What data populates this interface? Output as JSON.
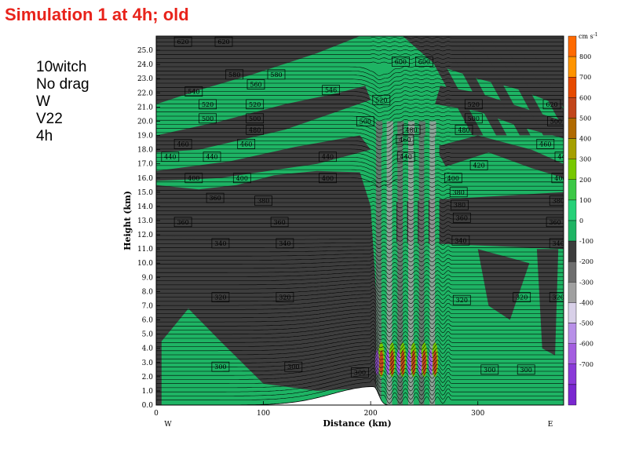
{
  "slide": {
    "title": "Simulation 1 at 4h; old",
    "notes": [
      "10witch",
      "No drag",
      "W",
      "V22",
      "4h"
    ]
  },
  "chart_data": {
    "type": "heatmap",
    "title": "",
    "xlabel": "Distance (km)",
    "ylabel": "Height (km)",
    "xlim": [
      0,
      380
    ],
    "ylim": [
      0,
      26
    ],
    "x_ticks": [
      0,
      100,
      200,
      300
    ],
    "y_ticks": [
      0.0,
      1.0,
      2.0,
      3.0,
      4.0,
      5.0,
      6.0,
      7.0,
      8.0,
      9.0,
      10.0,
      11.0,
      12.0,
      13.0,
      14.0,
      15.0,
      16.0,
      17.0,
      18.0,
      19.0,
      20.0,
      21.0,
      22.0,
      23.0,
      24.0,
      25.0
    ],
    "x_end_labels": {
      "left": "W",
      "right": "E"
    },
    "shaded_field": "W",
    "colorbar": {
      "unit": "cm s",
      "unit_exp": "-1",
      "levels": [
        {
          "label": "",
          "color": "#ff6a00"
        },
        {
          "label": "800",
          "color": "#ff9400"
        },
        {
          "label": "700",
          "color": "#e64a00"
        },
        {
          "label": "600",
          "color": "#c2461b"
        },
        {
          "label": "500",
          "color": "#b06a00"
        },
        {
          "label": "400",
          "color": "#a6a000"
        },
        {
          "label": "300",
          "color": "#78c800"
        },
        {
          "label": "200",
          "color": "#3cc846"
        },
        {
          "label": "100",
          "color": "#26d178"
        },
        {
          "label": "0",
          "color": "#1eb464"
        },
        {
          "label": "-100",
          "color": "#3d3d3d"
        },
        {
          "label": "-200",
          "color": "#6e6e6e"
        },
        {
          "label": "-300",
          "color": "#a0a0a0"
        },
        {
          "label": "-400",
          "color": "#d8d0e8"
        },
        {
          "label": "-500",
          "color": "#b890e8"
        },
        {
          "label": "-600",
          "color": "#a45ee0"
        },
        {
          "label": "-700",
          "color": "#8a3ad8"
        },
        {
          "label": "",
          "color": "#7a28d0"
        }
      ]
    },
    "theta_labels": [
      {
        "x": 25,
        "y": 25.6,
        "v": "620"
      },
      {
        "x": 63,
        "y": 25.6,
        "v": "620"
      },
      {
        "x": 228,
        "y": 24.2,
        "v": "600"
      },
      {
        "x": 250,
        "y": 24.2,
        "v": "600"
      },
      {
        "x": 73,
        "y": 23.3,
        "v": "580"
      },
      {
        "x": 112,
        "y": 23.3,
        "v": "580"
      },
      {
        "x": 93,
        "y": 22.6,
        "v": "560"
      },
      {
        "x": 163,
        "y": 22.2,
        "v": "546"
      },
      {
        "x": 35,
        "y": 22.1,
        "v": "540"
      },
      {
        "x": 48,
        "y": 21.2,
        "v": "520"
      },
      {
        "x": 92,
        "y": 21.2,
        "v": "520"
      },
      {
        "x": 210,
        "y": 21.5,
        "v": "520"
      },
      {
        "x": 296,
        "y": 21.2,
        "v": "520"
      },
      {
        "x": 369,
        "y": 21.2,
        "v": "620"
      },
      {
        "x": 48,
        "y": 20.2,
        "v": "500"
      },
      {
        "x": 92,
        "y": 20.2,
        "v": "500"
      },
      {
        "x": 195,
        "y": 20.0,
        "v": "500"
      },
      {
        "x": 296,
        "y": 20.2,
        "v": "500"
      },
      {
        "x": 373,
        "y": 20.0,
        "v": "500"
      },
      {
        "x": 92,
        "y": 19.4,
        "v": "480"
      },
      {
        "x": 238,
        "y": 19.4,
        "v": "480"
      },
      {
        "x": 287,
        "y": 19.4,
        "v": "480"
      },
      {
        "x": 25,
        "y": 18.4,
        "v": "460"
      },
      {
        "x": 84,
        "y": 18.4,
        "v": "460"
      },
      {
        "x": 232,
        "y": 18.7,
        "v": "460"
      },
      {
        "x": 363,
        "y": 18.4,
        "v": "460"
      },
      {
        "x": 13,
        "y": 17.5,
        "v": "440"
      },
      {
        "x": 52,
        "y": 17.5,
        "v": "440"
      },
      {
        "x": 160,
        "y": 17.5,
        "v": "440"
      },
      {
        "x": 233,
        "y": 17.5,
        "v": "440"
      },
      {
        "x": 380,
        "y": 17.5,
        "v": "440"
      },
      {
        "x": 301,
        "y": 16.9,
        "v": "420"
      },
      {
        "x": 35,
        "y": 16.0,
        "v": "400"
      },
      {
        "x": 80,
        "y": 16.0,
        "v": "400"
      },
      {
        "x": 160,
        "y": 16.0,
        "v": "400"
      },
      {
        "x": 277,
        "y": 16.0,
        "v": "400"
      },
      {
        "x": 377,
        "y": 16.0,
        "v": "400"
      },
      {
        "x": 282,
        "y": 15.0,
        "v": "380"
      },
      {
        "x": 100,
        "y": 14.4,
        "v": "380"
      },
      {
        "x": 55,
        "y": 14.6,
        "v": "360"
      },
      {
        "x": 283,
        "y": 14.1,
        "v": "380"
      },
      {
        "x": 375,
        "y": 14.4,
        "v": "380"
      },
      {
        "x": 25,
        "y": 12.9,
        "v": "360"
      },
      {
        "x": 115,
        "y": 12.9,
        "v": "360"
      },
      {
        "x": 285,
        "y": 13.2,
        "v": "360"
      },
      {
        "x": 372,
        "y": 12.9,
        "v": "360"
      },
      {
        "x": 60,
        "y": 11.4,
        "v": "340"
      },
      {
        "x": 120,
        "y": 11.4,
        "v": "340"
      },
      {
        "x": 284,
        "y": 11.6,
        "v": "340"
      },
      {
        "x": 375,
        "y": 11.4,
        "v": "340"
      },
      {
        "x": 60,
        "y": 7.6,
        "v": "320"
      },
      {
        "x": 120,
        "y": 7.6,
        "v": "320"
      },
      {
        "x": 285,
        "y": 7.4,
        "v": "320"
      },
      {
        "x": 341,
        "y": 7.6,
        "v": "320"
      },
      {
        "x": 375,
        "y": 7.6,
        "v": "320"
      },
      {
        "x": 60,
        "y": 2.7,
        "v": "300"
      },
      {
        "x": 128,
        "y": 2.7,
        "v": "300"
      },
      {
        "x": 190,
        "y": 2.3,
        "v": "300"
      },
      {
        "x": 311,
        "y": 2.5,
        "v": "300"
      },
      {
        "x": 345,
        "y": 2.5,
        "v": "300"
      }
    ]
  }
}
